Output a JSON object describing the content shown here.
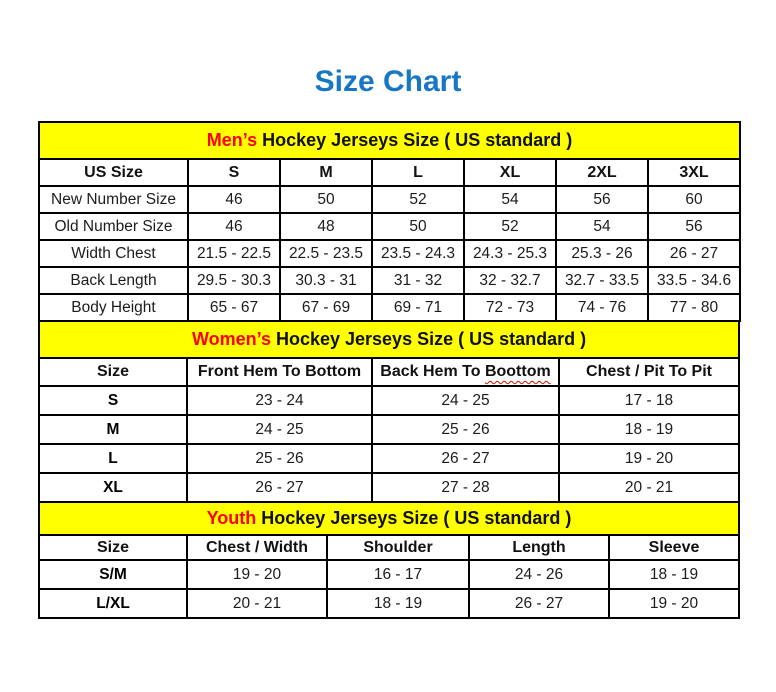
{
  "page_title": "Size Chart",
  "colors": {
    "title_blue": "#1777c4",
    "band_yellow": "#ffff00",
    "highlight_red": "#ff0000",
    "spellcheck_red": "#cc1100",
    "border_black": "#000000"
  },
  "tables": [
    {
      "name": "mens",
      "title_highlight": "Men’s",
      "title_rest": "Hockey Jerseys Size ( US standard )",
      "columns": [
        "US Size",
        "S",
        "M",
        "L",
        "XL",
        "2XL",
        "3XL"
      ],
      "rows": [
        {
          "label": "New Number Size",
          "values": [
            "46",
            "50",
            "52",
            "54",
            "56",
            "60"
          ]
        },
        {
          "label": "Old Number Size",
          "values": [
            "46",
            "48",
            "50",
            "52",
            "54",
            "56"
          ]
        },
        {
          "label": "Width Chest",
          "values": [
            "21.5 - 22.5",
            "22.5 - 23.5",
            "23.5 - 24.3",
            "24.3 - 25.3",
            "25.3 - 26",
            "26 - 27"
          ]
        },
        {
          "label": "Back Length",
          "values": [
            "29.5 - 30.3",
            "30.3 - 31",
            "31 - 32",
            "32 - 32.7",
            "32.7 - 33.5",
            "33.5 - 34.6"
          ]
        },
        {
          "label": "Body Height",
          "values": [
            "65 - 67",
            "67 - 69",
            "69 - 71",
            "72 - 73",
            "74 - 76",
            "77 - 80"
          ]
        }
      ]
    },
    {
      "name": "womens",
      "title_highlight": "Women’s",
      "title_rest": "Hockey Jerseys Size ( US standard )",
      "columns": [
        "Size",
        "Front Hem To Bottom",
        {
          "prefix": "Back Hem To",
          "word": "Boottom",
          "note": "spellcheck-wavy-underline"
        },
        "Chest / Pit To Pit"
      ],
      "rows": [
        {
          "label": "S",
          "values": [
            "23 - 24",
            "24 - 25",
            "17 - 18"
          ]
        },
        {
          "label": "M",
          "values": [
            "24 - 25",
            "25 - 26",
            "18 - 19"
          ]
        },
        {
          "label": "L",
          "values": [
            "25 - 26",
            "26 - 27",
            "19 - 20"
          ]
        },
        {
          "label": "XL",
          "values": [
            "26 - 27",
            "27 - 28",
            "20 - 21"
          ]
        }
      ]
    },
    {
      "name": "youth",
      "title_highlight": "Youth",
      "title_rest": "Hockey Jerseys Size ( US standard )",
      "columns": [
        "Size",
        "Chest / Width",
        "Shoulder",
        "Length",
        "Sleeve"
      ],
      "rows": [
        {
          "label": "S/M",
          "values": [
            "19 - 20",
            "16 - 17",
            "24 - 26",
            "18 - 19"
          ]
        },
        {
          "label": "L/XL",
          "values": [
            "20 - 21",
            "18 - 19",
            "26 - 27",
            "19 - 20"
          ]
        }
      ]
    }
  ]
}
